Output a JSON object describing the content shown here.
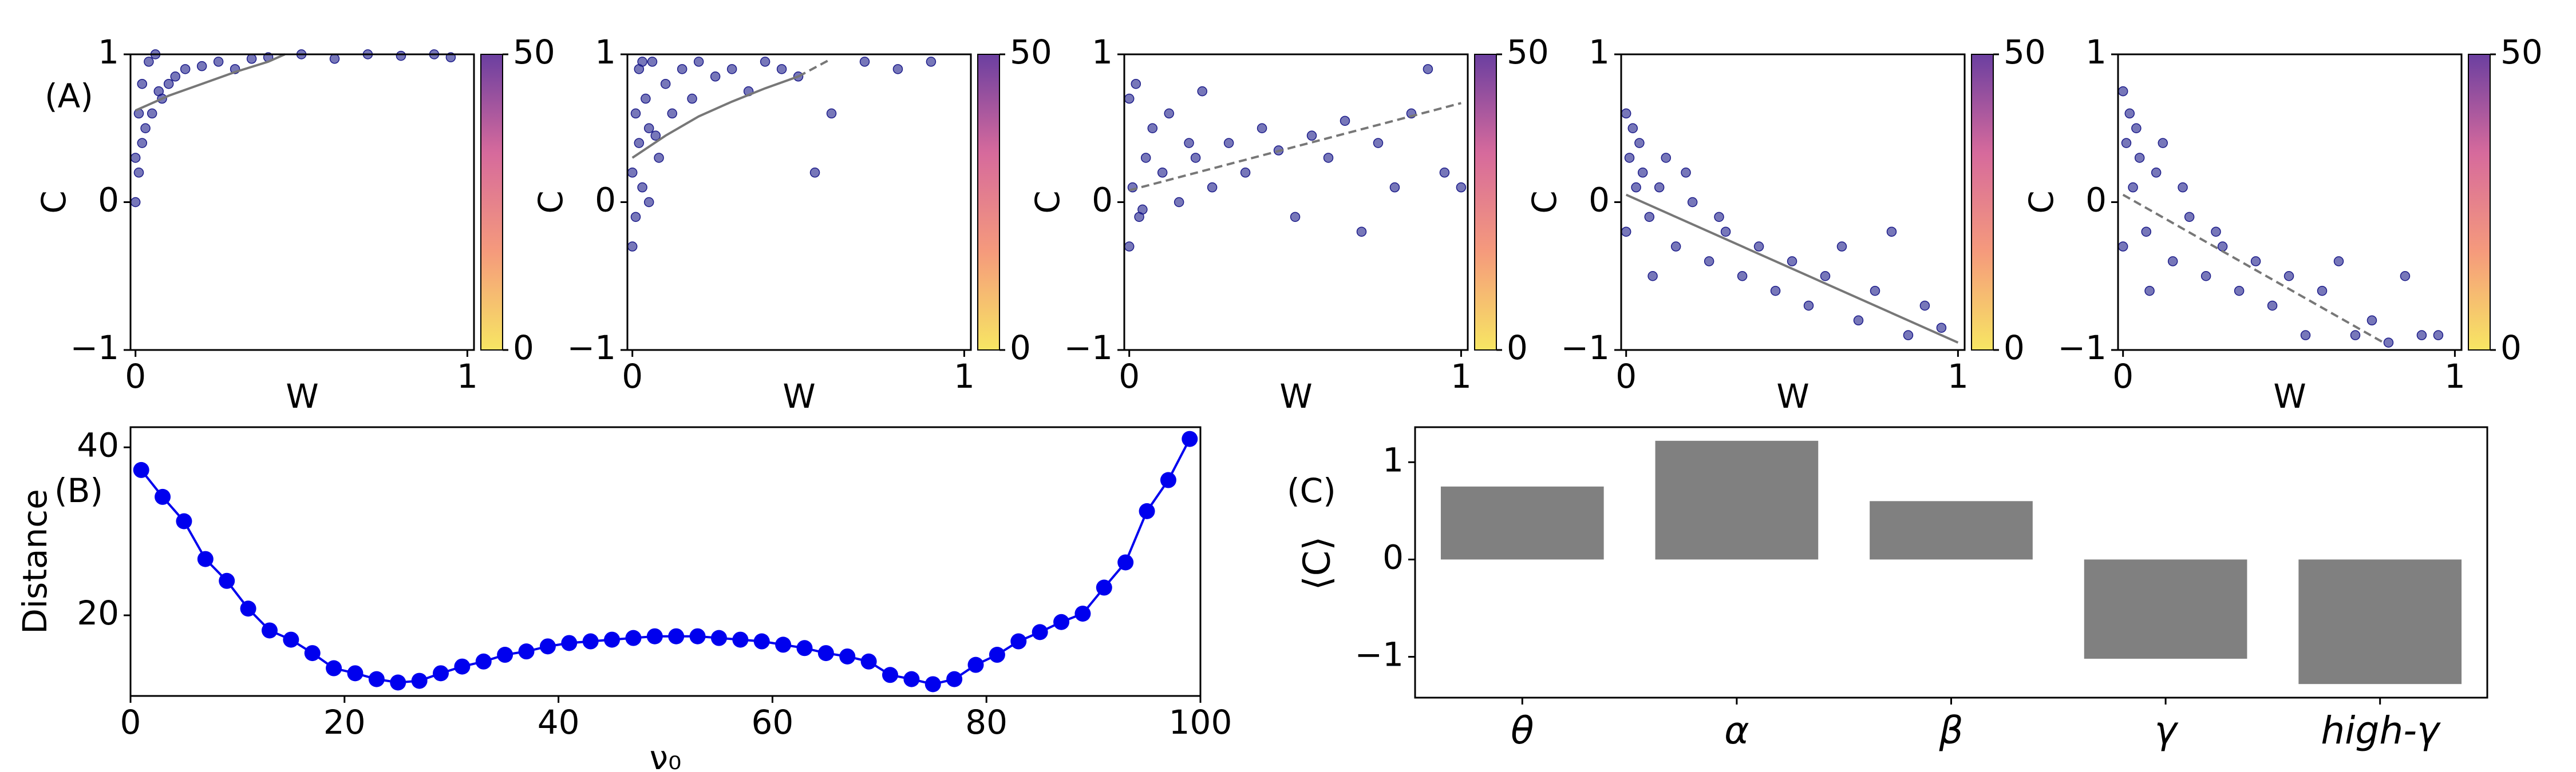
{
  "chart_data": [
    {
      "type": "scatter",
      "annotation": "(A)",
      "xlabel": "W",
      "ylabel": "C",
      "xlim": [
        -0.015,
        1.02
      ],
      "ylim": [
        -1,
        1
      ],
      "xticks": [
        0,
        1
      ],
      "yticks": [
        {
          "value": -1,
          "label": "−1"
        },
        0,
        1
      ],
      "color": "#1c1c8a",
      "x": [
        0,
        0.01,
        0.02,
        0.03,
        0.05,
        0.07,
        0.1,
        0.12,
        0.15,
        0.2,
        0.25,
        0.3,
        0.35,
        0.4,
        0.5,
        0.6,
        0.7,
        0.8,
        0.9,
        0.95,
        0.01,
        0.02,
        0.04,
        0.06,
        0.08,
        0.0
      ],
      "y": [
        0.0,
        0.2,
        0.4,
        0.5,
        0.6,
        0.75,
        0.8,
        0.85,
        0.9,
        0.92,
        0.95,
        0.9,
        0.97,
        0.98,
        1.0,
        0.97,
        1.0,
        0.99,
        1.0,
        0.98,
        0.6,
        0.8,
        0.95,
        1.0,
        0.7,
        0.3
      ],
      "fits": [
        {
          "x": [
            0,
            0.1,
            0.2,
            0.3,
            0.4,
            0.45
          ],
          "y": [
            0.62,
            0.72,
            0.8,
            0.88,
            0.95,
            1.0
          ],
          "dash": false
        }
      ],
      "colorbar": {
        "lim": [
          0,
          50
        ],
        "ticks": [
          0,
          50
        ],
        "colors": [
          "#f7e663",
          "#f59a7c",
          "#d66a9c",
          "#6b3fa0"
        ]
      }
    },
    {
      "type": "scatter",
      "xlabel": "W",
      "ylabel": "C",
      "xlim": [
        -0.015,
        1.02
      ],
      "ylim": [
        -1,
        1
      ],
      "xticks": [
        0,
        1
      ],
      "yticks": [
        {
          "value": -1,
          "label": "−1"
        },
        0,
        1
      ],
      "color": "#1c1c8a",
      "x": [
        0,
        0,
        0.01,
        0.01,
        0.02,
        0.02,
        0.03,
        0.04,
        0.05,
        0.06,
        0.08,
        0.1,
        0.12,
        0.15,
        0.18,
        0.2,
        0.25,
        0.3,
        0.35,
        0.4,
        0.45,
        0.5,
        0.6,
        0.7,
        0.8,
        0.9,
        0.03,
        0.05,
        0.07,
        0.55
      ],
      "y": [
        -0.3,
        0.2,
        -0.1,
        0.6,
        0.4,
        0.9,
        0.1,
        0.7,
        0.5,
        0.95,
        0.3,
        0.8,
        0.6,
        0.9,
        0.7,
        0.95,
        0.85,
        0.9,
        0.75,
        0.95,
        0.9,
        0.85,
        0.6,
        0.95,
        0.9,
        0.95,
        0.95,
        0.0,
        0.45,
        0.2
      ],
      "fits": [
        {
          "x": [
            0,
            0.1,
            0.2,
            0.3,
            0.4,
            0.5
          ],
          "y": [
            0.3,
            0.45,
            0.58,
            0.68,
            0.77,
            0.85
          ],
          "dash": false
        },
        {
          "x": [
            0.5,
            0.6
          ],
          "y": [
            0.85,
            0.97
          ],
          "dash": true
        }
      ],
      "colorbar": {
        "lim": [
          0,
          50
        ],
        "ticks": [
          0,
          50
        ],
        "colors": [
          "#f7e663",
          "#f59a7c",
          "#d66a9c",
          "#6b3fa0"
        ]
      }
    },
    {
      "type": "scatter",
      "xlabel": "W",
      "ylabel": "C",
      "xlim": [
        -0.015,
        1.02
      ],
      "ylim": [
        -1,
        1
      ],
      "xticks": [
        0,
        1
      ],
      "yticks": [
        {
          "value": -1,
          "label": "−1"
        },
        0,
        1
      ],
      "color": "#1c1c8a",
      "x": [
        0,
        0,
        0.01,
        0.02,
        0.03,
        0.05,
        0.07,
        0.1,
        0.12,
        0.15,
        0.18,
        0.2,
        0.22,
        0.25,
        0.3,
        0.35,
        0.4,
        0.45,
        0.5,
        0.55,
        0.6,
        0.65,
        0.7,
        0.75,
        0.8,
        0.85,
        0.9,
        0.95,
        1.0,
        0.04
      ],
      "y": [
        -0.3,
        0.7,
        0.1,
        0.8,
        -0.1,
        0.3,
        0.5,
        0.2,
        0.6,
        0.0,
        0.4,
        0.3,
        0.75,
        0.1,
        0.4,
        0.2,
        0.5,
        0.35,
        -0.1,
        0.45,
        0.3,
        0.55,
        -0.2,
        0.4,
        0.1,
        0.6,
        0.9,
        0.2,
        0.1,
        -0.05
      ],
      "fits": [
        {
          "x": [
            0,
            1
          ],
          "y": [
            0.08,
            0.67
          ],
          "dash": true
        }
      ],
      "colorbar": {
        "lim": [
          0,
          50
        ],
        "ticks": [
          0,
          50
        ],
        "colors": [
          "#f7e663",
          "#f59a7c",
          "#d66a9c",
          "#6b3fa0"
        ]
      }
    },
    {
      "type": "scatter",
      "xlabel": "W",
      "ylabel": "C",
      "xlim": [
        -0.015,
        1.02
      ],
      "ylim": [
        -1,
        1
      ],
      "xticks": [
        0,
        1
      ],
      "yticks": [
        {
          "value": -1,
          "label": "−1"
        },
        0,
        1
      ],
      "color": "#1c1c8a",
      "x": [
        0,
        0,
        0.01,
        0.02,
        0.03,
        0.05,
        0.07,
        0.1,
        0.12,
        0.15,
        0.2,
        0.25,
        0.3,
        0.35,
        0.4,
        0.45,
        0.5,
        0.55,
        0.6,
        0.65,
        0.7,
        0.75,
        0.8,
        0.85,
        0.9,
        0.95,
        0.04,
        0.08,
        0.18,
        0.28
      ],
      "y": [
        0.6,
        -0.2,
        0.3,
        0.5,
        0.1,
        0.2,
        -0.1,
        0.1,
        0.3,
        -0.3,
        0.0,
        -0.4,
        -0.2,
        -0.5,
        -0.3,
        -0.6,
        -0.4,
        -0.7,
        -0.5,
        -0.3,
        -0.8,
        -0.6,
        -0.2,
        -0.9,
        -0.7,
        -0.85,
        0.4,
        -0.5,
        0.2,
        -0.1
      ],
      "fits": [
        {
          "x": [
            0,
            1
          ],
          "y": [
            0.05,
            -0.95
          ],
          "dash": false
        }
      ],
      "colorbar": {
        "lim": [
          0,
          50
        ],
        "ticks": [
          0,
          50
        ],
        "colors": [
          "#f7e663",
          "#f59a7c",
          "#d66a9c",
          "#6b3fa0"
        ]
      }
    },
    {
      "type": "scatter",
      "xlabel": "W",
      "ylabel": "C",
      "xlim": [
        -0.015,
        1.02
      ],
      "ylim": [
        -1,
        1
      ],
      "xticks": [
        0,
        1
      ],
      "yticks": [
        {
          "value": -1,
          "label": "−1"
        },
        0,
        1
      ],
      "color": "#1c1c8a",
      "x": [
        0,
        0,
        0.01,
        0.02,
        0.03,
        0.05,
        0.07,
        0.1,
        0.12,
        0.15,
        0.2,
        0.25,
        0.3,
        0.35,
        0.4,
        0.45,
        0.5,
        0.55,
        0.6,
        0.65,
        0.7,
        0.75,
        0.8,
        0.85,
        0.9,
        0.95,
        0.04,
        0.08,
        0.18,
        0.28
      ],
      "y": [
        0.75,
        -0.3,
        0.4,
        0.6,
        0.1,
        0.3,
        -0.2,
        0.2,
        0.4,
        -0.4,
        -0.1,
        -0.5,
        -0.3,
        -0.6,
        -0.4,
        -0.7,
        -0.5,
        -0.9,
        -0.6,
        -0.4,
        -0.9,
        -0.8,
        -0.95,
        -0.5,
        -0.9,
        -0.9,
        0.5,
        -0.6,
        0.1,
        -0.2
      ],
      "fits": [
        {
          "x": [
            0,
            0.785
          ],
          "y": [
            0.05,
            -0.95
          ],
          "dash": true
        }
      ],
      "colorbar": {
        "lim": [
          0,
          50
        ],
        "ticks": [
          0,
          50
        ],
        "colors": [
          "#f7e663",
          "#f59a7c",
          "#d66a9c",
          "#6b3fa0"
        ]
      }
    },
    {
      "type": "line",
      "annotation": "(B)",
      "xlabel": "ν₀",
      "ylabel": "Distance",
      "xlim": [
        0,
        100
      ],
      "ylim": [
        10.4,
        42.4
      ],
      "xticks": [
        0,
        20,
        40,
        60,
        80,
        100
      ],
      "yticks": [
        20,
        40
      ],
      "color": "#0000ee",
      "x": [
        1,
        3,
        5,
        7,
        9,
        11,
        13,
        15,
        17,
        19,
        21,
        23,
        25,
        27,
        29,
        31,
        33,
        35,
        37,
        39,
        41,
        43,
        45,
        47,
        49,
        51,
        53,
        55,
        57,
        59,
        61,
        63,
        65,
        67,
        69,
        71,
        73,
        75,
        77,
        79,
        81,
        83,
        85,
        87,
        89,
        91,
        93,
        95,
        97,
        99
      ],
      "y": [
        37.3,
        34.1,
        31.2,
        26.7,
        24.1,
        20.8,
        18.2,
        17.1,
        15.5,
        13.7,
        13.1,
        12.4,
        12,
        12.2,
        13.1,
        13.9,
        14.5,
        15.3,
        15.7,
        16.3,
        16.7,
        16.9,
        17.1,
        17.3,
        17.5,
        17.5,
        17.5,
        17.3,
        17.1,
        16.9,
        16.5,
        16.1,
        15.5,
        15.1,
        14.5,
        12.9,
        12.4,
        11.8,
        12.4,
        14.1,
        15.3,
        16.9,
        18.0,
        19.2,
        20.2,
        23.3,
        26.3,
        32.4,
        36.1,
        41.0
      ]
    },
    {
      "type": "bar",
      "annotation": "(C)",
      "ylabel": "⟨C⟩",
      "categories": [
        "θ",
        "α",
        "β",
        "γ",
        "high-γ"
      ],
      "values": [
        0.75,
        1.22,
        0.6,
        -1.02,
        -1.28
      ],
      "color": "#808080",
      "ylim": [
        -1.42,
        1.36
      ],
      "yticks": [
        {
          "value": -1,
          "label": "−1"
        },
        0,
        1
      ]
    }
  ]
}
